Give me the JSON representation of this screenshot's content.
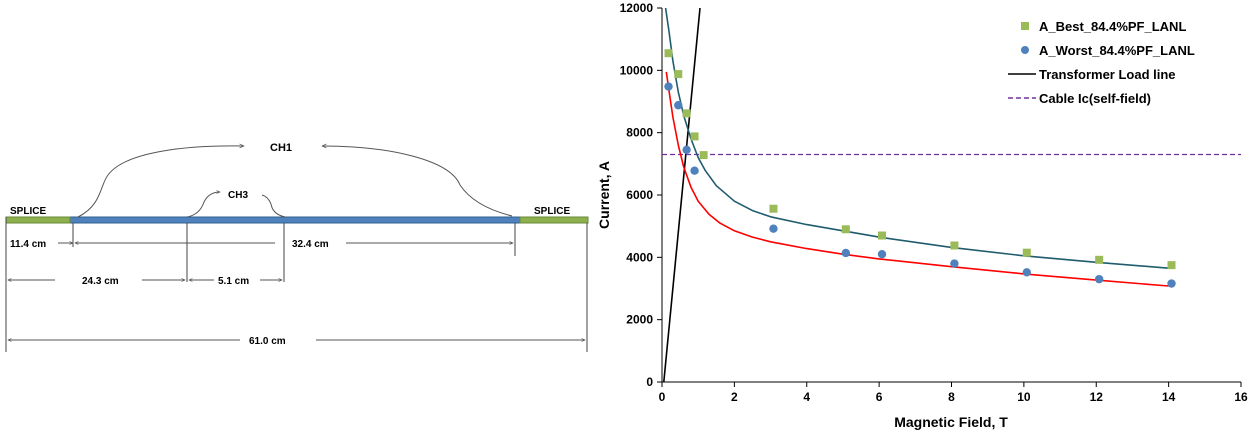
{
  "diagram": {
    "splice_left": "SPLICE",
    "splice_right": "SPLICE",
    "ch1": "CH1",
    "ch3": "CH3",
    "dim_11_4": "11.4 cm",
    "dim_32_4": "32.4 cm",
    "dim_24_3": "24.3 cm",
    "dim_5_1": "5.1 cm",
    "dim_61_0": "61.0 cm",
    "colors": {
      "splice": "#8db04e",
      "cable": "#4f81bd",
      "arrow": "#555555"
    }
  },
  "chart_data": {
    "type": "scatter",
    "xlabel": "Magnetic Field, T",
    "ylabel": "Current, A",
    "xlim": [
      0,
      16
    ],
    "ylim": [
      0,
      12000
    ],
    "xticks": [
      0,
      2,
      4,
      6,
      8,
      10,
      12,
      14,
      16
    ],
    "yticks": [
      0,
      2000,
      4000,
      6000,
      8000,
      10000,
      12000
    ],
    "grid": false,
    "legend_position": "top-right",
    "series": [
      {
        "name": "A_Best_84.4%PF_LANL",
        "kind": "markers",
        "marker": "square",
        "color": "#9bbb59",
        "x": [
          0.18,
          0.45,
          0.68,
          0.9,
          1.15,
          3.08,
          5.08,
          6.08,
          8.08,
          10.08,
          12.08,
          14.08
        ],
        "y": [
          10550,
          9880,
          8620,
          7880,
          7280,
          5560,
          4900,
          4700,
          4380,
          4150,
          3920,
          3750
        ]
      },
      {
        "name": "A_Worst_84.4%PF_LANL",
        "kind": "markers",
        "marker": "circle",
        "color": "#4f81bd",
        "x": [
          0.18,
          0.45,
          0.68,
          0.9,
          3.08,
          5.08,
          6.08,
          8.08,
          10.08,
          12.08,
          14.08
        ],
        "y": [
          9480,
          8880,
          7450,
          6780,
          4920,
          4140,
          4100,
          3800,
          3520,
          3300,
          3160
        ]
      },
      {
        "name": "Transformer Load line",
        "kind": "line",
        "color": "#000000",
        "x": [
          0.05,
          1.05
        ],
        "y": [
          0,
          12000
        ]
      },
      {
        "name": "Cable Ic(self-field)",
        "kind": "hline",
        "dashed": true,
        "color": "#7030a0",
        "x": [
          0,
          16
        ],
        "y": [
          7300,
          7300
        ]
      },
      {
        "name": "",
        "kind": "fit",
        "color": "#ff0000",
        "x": [
          0.12,
          0.2,
          0.3,
          0.45,
          0.6,
          0.8,
          1.0,
          1.3,
          1.6,
          2.0,
          2.5,
          3.0,
          4.0,
          5.0,
          6.0,
          8.0,
          10.0,
          12.0,
          14.0
        ],
        "y": [
          9950,
          9300,
          8500,
          7600,
          6900,
          6250,
          5800,
          5380,
          5100,
          4850,
          4650,
          4500,
          4280,
          4100,
          3950,
          3700,
          3470,
          3270,
          3080
        ]
      },
      {
        "name": "",
        "kind": "fit",
        "color": "#1f5c6e",
        "x": [
          0.1,
          0.2,
          0.3,
          0.45,
          0.6,
          0.8,
          1.0,
          1.2,
          1.5,
          2.0,
          2.5,
          3.0,
          4.0,
          5.0,
          6.0,
          8.0,
          10.0,
          12.0,
          14.0
        ],
        "y": [
          12000,
          11200,
          10300,
          9300,
          8550,
          7800,
          7200,
          6780,
          6300,
          5800,
          5500,
          5300,
          5050,
          4850,
          4650,
          4320,
          4050,
          3840,
          3650
        ]
      }
    ]
  }
}
